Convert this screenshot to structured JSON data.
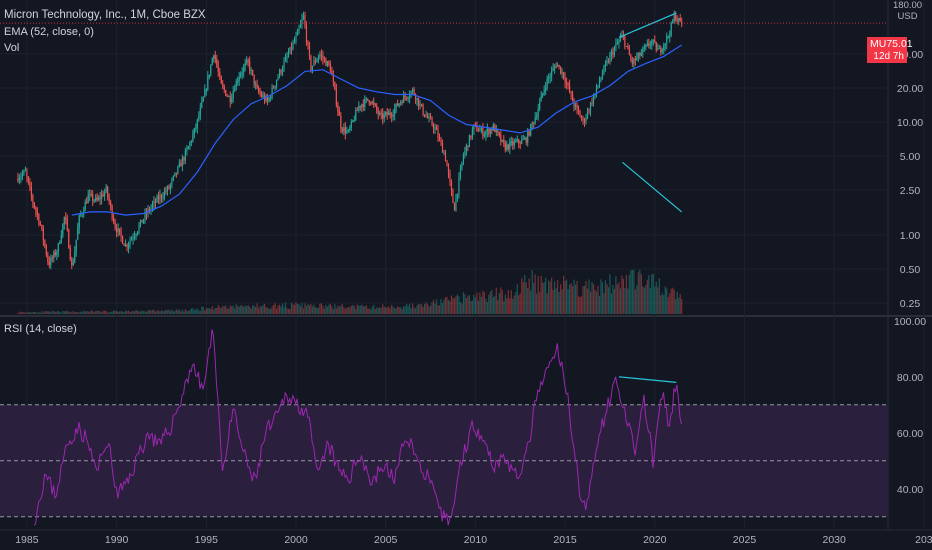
{
  "legend": {
    "title": "Micron Technology, Inc., 1M, Cboe BZX",
    "ema": "EMA (52, close, 0)",
    "vol": "Vol",
    "rsi": "RSI (14, close)"
  },
  "price_tag": {
    "symbol": "MU",
    "price": "75.01",
    "countdown": "12d 7h"
  },
  "currency": {
    "top": "180.00",
    "unit": "USD"
  },
  "colors": {
    "background": "#131722",
    "up": "#26a69a",
    "down": "#ef5350",
    "ema": "#2962ff",
    "rsi": "#9c27b0",
    "rsi_band": "#2a1f3d",
    "trendline": "#26c6da",
    "price_line": "#f23645"
  },
  "chart_data": [
    {
      "type": "candlestick",
      "title": "Micron Technology, Inc., 1M, Cboe BZX",
      "y_scale": "log",
      "ylim": [
        0.2,
        120
      ],
      "xlim": [
        1983.5,
        2033
      ],
      "y_ticks": [
        "40.00",
        "20.00",
        "10.00",
        "5.00",
        "2.50",
        "1.00",
        "0.50",
        "0.25"
      ],
      "x_ticks": [
        "1985",
        "1990",
        "1995",
        "2000",
        "2005",
        "2010",
        "2015",
        "2020",
        "2025",
        "2030",
        "203"
      ],
      "last_price": 75.01,
      "price_path": [
        [
          1984.5,
          3.2
        ],
        [
          1985.0,
          3.6
        ],
        [
          1985.4,
          2.0
        ],
        [
          1985.8,
          1.3
        ],
        [
          1986.3,
          0.55
        ],
        [
          1986.8,
          0.75
        ],
        [
          1987.2,
          1.5
        ],
        [
          1987.6,
          0.5
        ],
        [
          1988.0,
          1.4
        ],
        [
          1988.5,
          2.2
        ],
        [
          1989.0,
          2.0
        ],
        [
          1989.5,
          2.5
        ],
        [
          1990.0,
          1.2
        ],
        [
          1990.6,
          0.8
        ],
        [
          1991.2,
          1.1
        ],
        [
          1991.8,
          1.6
        ],
        [
          1992.4,
          2.1
        ],
        [
          1993.0,
          2.6
        ],
        [
          1993.5,
          3.8
        ],
        [
          1994.0,
          5.5
        ],
        [
          1994.5,
          9.0
        ],
        [
          1995.0,
          18
        ],
        [
          1995.5,
          42
        ],
        [
          1995.9,
          21
        ],
        [
          1996.4,
          16
        ],
        [
          1996.9,
          26
        ],
        [
          1997.4,
          34
        ],
        [
          1997.9,
          19
        ],
        [
          1998.5,
          15
        ],
        [
          1999.0,
          24
        ],
        [
          1999.6,
          38
        ],
        [
          2000.1,
          56
        ],
        [
          2000.5,
          86
        ],
        [
          2000.9,
          30
        ],
        [
          2001.4,
          40
        ],
        [
          2002.0,
          30
        ],
        [
          2002.6,
          9
        ],
        [
          2003.0,
          8
        ],
        [
          2003.6,
          14
        ],
        [
          2004.2,
          16
        ],
        [
          2004.8,
          11
        ],
        [
          2005.4,
          12
        ],
        [
          2006.0,
          16
        ],
        [
          2006.6,
          19
        ],
        [
          2007.2,
          12
        ],
        [
          2007.8,
          9
        ],
        [
          2008.4,
          5
        ],
        [
          2008.9,
          1.7
        ],
        [
          2009.4,
          5
        ],
        [
          2010.0,
          9
        ],
        [
          2010.6,
          8
        ],
        [
          2011.1,
          9
        ],
        [
          2011.7,
          6
        ],
        [
          2012.3,
          6.5
        ],
        [
          2012.9,
          7
        ],
        [
          2013.5,
          12
        ],
        [
          2014.0,
          22
        ],
        [
          2014.6,
          33
        ],
        [
          2015.0,
          26
        ],
        [
          2015.6,
          14
        ],
        [
          2016.1,
          10
        ],
        [
          2016.7,
          17
        ],
        [
          2017.2,
          28
        ],
        [
          2017.8,
          44
        ],
        [
          2018.3,
          58
        ],
        [
          2018.8,
          33
        ],
        [
          2019.3,
          40
        ],
        [
          2019.9,
          52
        ],
        [
          2020.3,
          42
        ],
        [
          2020.8,
          56
        ],
        [
          2021.2,
          88
        ],
        [
          2021.5,
          75.01
        ]
      ],
      "ema_52": [
        [
          1987.5,
          1.5
        ],
        [
          1988.5,
          1.6
        ],
        [
          1989.5,
          1.6
        ],
        [
          1990.5,
          1.5
        ],
        [
          1991.5,
          1.55
        ],
        [
          1992.5,
          1.8
        ],
        [
          1993.5,
          2.3
        ],
        [
          1994.5,
          3.6
        ],
        [
          1995.5,
          6.5
        ],
        [
          1996.5,
          10.5
        ],
        [
          1997.5,
          14.5
        ],
        [
          1998.5,
          17
        ],
        [
          1999.5,
          21
        ],
        [
          2000.5,
          28
        ],
        [
          2001.5,
          29
        ],
        [
          2002.5,
          24
        ],
        [
          2003.5,
          20
        ],
        [
          2004.5,
          18.5
        ],
        [
          2005.5,
          17.5
        ],
        [
          2006.5,
          17.5
        ],
        [
          2007.5,
          15.5
        ],
        [
          2008.5,
          11.5
        ],
        [
          2009.5,
          9.5
        ],
        [
          2010.5,
          9
        ],
        [
          2011.5,
          8.5
        ],
        [
          2012.5,
          8
        ],
        [
          2013.5,
          9
        ],
        [
          2014.5,
          12
        ],
        [
          2015.5,
          15
        ],
        [
          2016.5,
          17
        ],
        [
          2017.5,
          21
        ],
        [
          2018.5,
          28
        ],
        [
          2019.5,
          33
        ],
        [
          2020.5,
          38
        ],
        [
          2021.5,
          48
        ]
      ],
      "trendlines": [
        {
          "from": [
            2018.0,
            56
          ],
          "to": [
            2021.2,
            92
          ]
        },
        {
          "from": [
            2018.2,
            4.4
          ],
          "to": [
            2021.5,
            1.6
          ]
        }
      ]
    },
    {
      "type": "bar",
      "title": "Vol",
      "x_range": [
        1984.5,
        2021.5
      ],
      "volume_path": [
        [
          1984.5,
          0.05
        ],
        [
          1990,
          0.07
        ],
        [
          1994,
          0.1
        ],
        [
          1996,
          0.2
        ],
        [
          2000,
          0.22
        ],
        [
          2004,
          0.18
        ],
        [
          2007,
          0.22
        ],
        [
          2009,
          0.4
        ],
        [
          2010,
          0.45
        ],
        [
          2012,
          0.55
        ],
        [
          2013,
          0.9
        ],
        [
          2014,
          0.85
        ],
        [
          2016,
          0.7
        ],
        [
          2018,
          0.8
        ],
        [
          2019,
          1.0
        ],
        [
          2020,
          0.75
        ],
        [
          2021.5,
          0.45
        ]
      ]
    },
    {
      "type": "line",
      "title": "RSI (14, close)",
      "ylim": [
        26,
        101
      ],
      "y_ticks": [
        "100.00",
        "80.00",
        "60.00",
        "40.00"
      ],
      "levels": [
        70,
        50,
        30
      ],
      "series": [
        {
          "values": [
            [
              1985.4,
              28
            ],
            [
              1986.0,
              45
            ],
            [
              1986.6,
              38
            ],
            [
              1987.2,
              55
            ],
            [
              1987.8,
              62
            ],
            [
              1988.3,
              58
            ],
            [
              1988.9,
              46
            ],
            [
              1989.5,
              58
            ],
            [
              1990.0,
              38
            ],
            [
              1990.6,
              42
            ],
            [
              1991.2,
              52
            ],
            [
              1991.8,
              60
            ],
            [
              1992.4,
              55
            ],
            [
              1993.0,
              62
            ],
            [
              1993.6,
              72
            ],
            [
              1994.2,
              85
            ],
            [
              1994.8,
              75
            ],
            [
              1995.4,
              97
            ],
            [
              1995.9,
              46
            ],
            [
              1996.5,
              68
            ],
            [
              1997.1,
              52
            ],
            [
              1997.7,
              42
            ],
            [
              1998.3,
              60
            ],
            [
              1998.9,
              65
            ],
            [
              1999.5,
              74
            ],
            [
              2000.1,
              70
            ],
            [
              2000.6,
              68
            ],
            [
              2001.2,
              44
            ],
            [
              2001.8,
              56
            ],
            [
              2002.4,
              46
            ],
            [
              2003.0,
              44
            ],
            [
              2003.6,
              53
            ],
            [
              2004.2,
              42
            ],
            [
              2004.8,
              48
            ],
            [
              2005.5,
              44
            ],
            [
              2006.2,
              60
            ],
            [
              2006.8,
              49
            ],
            [
              2007.4,
              44
            ],
            [
              2008.0,
              31
            ],
            [
              2008.6,
              28
            ],
            [
              2009.2,
              50
            ],
            [
              2009.8,
              62
            ],
            [
              2010.4,
              60
            ],
            [
              2011.0,
              48
            ],
            [
              2011.6,
              52
            ],
            [
              2012.2,
              44
            ],
            [
              2012.8,
              50
            ],
            [
              2013.4,
              72
            ],
            [
              2014.0,
              82
            ],
            [
              2014.6,
              90
            ],
            [
              2015.2,
              70
            ],
            [
              2015.8,
              40
            ],
            [
              2016.2,
              32
            ],
            [
              2016.8,
              58
            ],
            [
              2017.4,
              70
            ],
            [
              2017.9,
              80
            ],
            [
              2018.4,
              64
            ],
            [
              2018.9,
              54
            ],
            [
              2019.4,
              72
            ],
            [
              2019.9,
              50
            ],
            [
              2020.4,
              74
            ],
            [
              2020.8,
              62
            ],
            [
              2021.2,
              78
            ],
            [
              2021.5,
              61
            ]
          ]
        }
      ],
      "trendlines": [
        {
          "from": [
            2018.0,
            80
          ],
          "to": [
            2021.2,
            78
          ]
        }
      ]
    }
  ]
}
